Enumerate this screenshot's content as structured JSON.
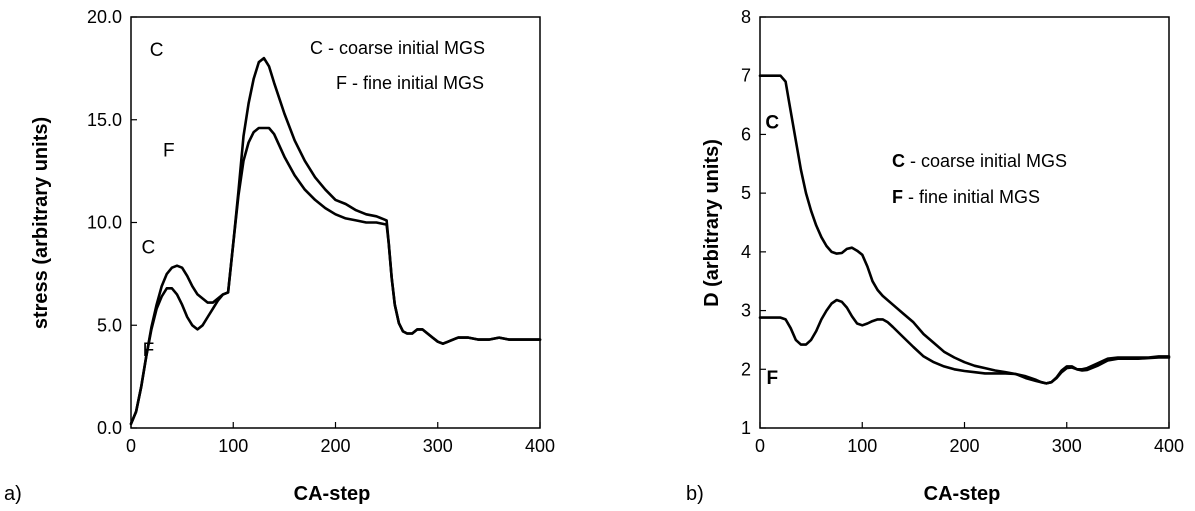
{
  "chart_data": [
    {
      "type": "line",
      "panel_label": "a)",
      "xlabel": "CA-step",
      "ylabel": "stress (arbitrary units)",
      "xlim": [
        0,
        400
      ],
      "ylim": [
        0,
        20
      ],
      "xticks": [
        0,
        100,
        200,
        300,
        400
      ],
      "yticks": [
        0,
        5,
        10,
        15,
        20
      ],
      "xtick_labels": [
        "0",
        "100",
        "200",
        "300",
        "400"
      ],
      "ytick_labels": [
        "0.0",
        "5.0",
        "10.0",
        "15.0",
        "20.0"
      ],
      "grid": false,
      "legend": {
        "placement": "top-right",
        "entries": [
          "C - coarse initial MGS",
          "F - fine initial MGS"
        ]
      },
      "series": [
        {
          "name": "C",
          "x": [
            0,
            5,
            10,
            15,
            20,
            25,
            30,
            35,
            40,
            45,
            50,
            55,
            60,
            65,
            70,
            75,
            80,
            85,
            90,
            95,
            100,
            105,
            110,
            115,
            120,
            125,
            130,
            135,
            140,
            150,
            160,
            170,
            180,
            190,
            200,
            210,
            220,
            230,
            240,
            250,
            252,
            255,
            258,
            262,
            266,
            270,
            275,
            280,
            285,
            290,
            295,
            300,
            305,
            310,
            315,
            320,
            325,
            330,
            340,
            350,
            360,
            370,
            380,
            390,
            400
          ],
          "y": [
            0.2,
            0.8,
            2.0,
            3.5,
            4.9,
            6.0,
            6.9,
            7.5,
            7.8,
            7.9,
            7.8,
            7.4,
            6.9,
            6.5,
            6.3,
            6.1,
            6.1,
            6.3,
            6.5,
            6.6,
            9.0,
            11.5,
            14.2,
            15.8,
            17.0,
            17.8,
            18.0,
            17.6,
            16.8,
            15.3,
            14.0,
            13.0,
            12.2,
            11.6,
            11.1,
            10.9,
            10.6,
            10.4,
            10.3,
            10.1,
            9.0,
            7.3,
            6.0,
            5.1,
            4.7,
            4.6,
            4.6,
            4.8,
            4.8,
            4.6,
            4.4,
            4.2,
            4.1,
            4.2,
            4.3,
            4.4,
            4.4,
            4.4,
            4.3,
            4.3,
            4.4,
            4.3,
            4.3,
            4.3,
            4.3
          ]
        },
        {
          "name": "F",
          "x": [
            0,
            5,
            10,
            15,
            20,
            25,
            30,
            35,
            40,
            45,
            50,
            55,
            60,
            65,
            70,
            75,
            80,
            85,
            90,
            95,
            100,
            105,
            110,
            115,
            120,
            125,
            130,
            135,
            140,
            150,
            160,
            170,
            180,
            190,
            200,
            210,
            220,
            230,
            240,
            250,
            252,
            255,
            258,
            262,
            266,
            270,
            275,
            280,
            285,
            290,
            295,
            300,
            305,
            310,
            315,
            320,
            325,
            330,
            340,
            350,
            360,
            370,
            380,
            390,
            400
          ],
          "y": [
            0.2,
            0.8,
            2.0,
            3.5,
            4.8,
            5.8,
            6.4,
            6.8,
            6.8,
            6.5,
            6.0,
            5.4,
            5.0,
            4.8,
            5.0,
            5.4,
            5.8,
            6.2,
            6.5,
            6.6,
            9.0,
            11.3,
            13.0,
            13.9,
            14.4,
            14.6,
            14.6,
            14.6,
            14.3,
            13.2,
            12.3,
            11.6,
            11.1,
            10.7,
            10.4,
            10.2,
            10.1,
            10.0,
            10.0,
            9.9,
            9.0,
            7.3,
            6.0,
            5.1,
            4.7,
            4.6,
            4.6,
            4.8,
            4.8,
            4.6,
            4.4,
            4.2,
            4.1,
            4.2,
            4.3,
            4.4,
            4.4,
            4.4,
            4.3,
            4.3,
            4.4,
            4.3,
            4.3,
            4.3,
            4.3
          ]
        }
      ],
      "curve_labels": [
        {
          "text": "C",
          "x": 25,
          "y": 18.1
        },
        {
          "text": "F",
          "x": 37,
          "y": 13.2
        },
        {
          "text": "C",
          "x": 17,
          "y": 8.5
        },
        {
          "text": "F",
          "x": 17,
          "y": 3.5
        }
      ]
    },
    {
      "type": "line",
      "panel_label": "b)",
      "xlabel": "CA-step",
      "ylabel": "D (arbitrary units)",
      "xlim": [
        0,
        400
      ],
      "ylim": [
        1,
        8
      ],
      "xticks": [
        0,
        100,
        200,
        300,
        400
      ],
      "yticks": [
        1,
        2,
        3,
        4,
        5,
        6,
        7,
        8
      ],
      "xtick_labels": [
        "0",
        "100",
        "200",
        "300",
        "400"
      ],
      "ytick_labels": [
        "1",
        "2",
        "3",
        "4",
        "5",
        "6",
        "7",
        "8"
      ],
      "grid": false,
      "legend": {
        "placement": "right",
        "entries": [
          {
            "key": "C",
            "text": " - coarse initial MGS"
          },
          {
            "key": "F",
            "text": " - fine initial MGS"
          }
        ]
      },
      "series": [
        {
          "name": "C",
          "x": [
            0,
            10,
            20,
            25,
            28,
            32,
            36,
            40,
            45,
            50,
            55,
            60,
            65,
            70,
            75,
            80,
            85,
            90,
            95,
            100,
            105,
            110,
            115,
            120,
            130,
            140,
            150,
            160,
            170,
            180,
            190,
            200,
            210,
            220,
            230,
            240,
            250,
            260,
            270,
            275,
            280,
            285,
            290,
            295,
            300,
            305,
            310,
            315,
            320,
            330,
            340,
            350,
            360,
            370,
            380,
            390,
            400
          ],
          "y": [
            7.0,
            7.0,
            7.0,
            6.9,
            6.6,
            6.2,
            5.8,
            5.4,
            5.0,
            4.7,
            4.45,
            4.25,
            4.1,
            4.0,
            3.97,
            3.98,
            4.05,
            4.07,
            4.02,
            3.95,
            3.75,
            3.5,
            3.35,
            3.25,
            3.1,
            2.95,
            2.8,
            2.6,
            2.45,
            2.3,
            2.2,
            2.12,
            2.06,
            2.02,
            1.98,
            1.95,
            1.92,
            1.85,
            1.8,
            1.78,
            1.76,
            1.78,
            1.85,
            1.95,
            2.02,
            2.03,
            2.0,
            2.0,
            2.02,
            2.1,
            2.18,
            2.2,
            2.2,
            2.2,
            2.2,
            2.22,
            2.22
          ]
        },
        {
          "name": "F",
          "x": [
            0,
            10,
            20,
            25,
            30,
            35,
            40,
            45,
            50,
            55,
            60,
            65,
            70,
            75,
            80,
            85,
            90,
            95,
            100,
            105,
            110,
            115,
            120,
            125,
            130,
            140,
            150,
            160,
            170,
            180,
            190,
            200,
            210,
            220,
            230,
            240,
            250,
            260,
            270,
            275,
            280,
            285,
            290,
            295,
            300,
            305,
            310,
            315,
            320,
            330,
            340,
            350,
            360,
            370,
            380,
            390,
            400
          ],
          "y": [
            2.88,
            2.88,
            2.88,
            2.85,
            2.7,
            2.5,
            2.42,
            2.42,
            2.5,
            2.65,
            2.85,
            3.0,
            3.12,
            3.18,
            3.15,
            3.05,
            2.9,
            2.78,
            2.75,
            2.78,
            2.82,
            2.85,
            2.85,
            2.8,
            2.72,
            2.55,
            2.38,
            2.22,
            2.12,
            2.05,
            2.0,
            1.97,
            1.95,
            1.93,
            1.93,
            1.93,
            1.92,
            1.88,
            1.82,
            1.78,
            1.76,
            1.78,
            1.86,
            1.98,
            2.05,
            2.05,
            2.0,
            1.98,
            1.99,
            2.06,
            2.15,
            2.18,
            2.18,
            2.18,
            2.19,
            2.2,
            2.2
          ]
        }
      ],
      "curve_labels": [
        {
          "text": "C",
          "x": 12,
          "y": 6.1
        },
        {
          "text": "F",
          "x": 12,
          "y": 1.75
        }
      ]
    }
  ]
}
